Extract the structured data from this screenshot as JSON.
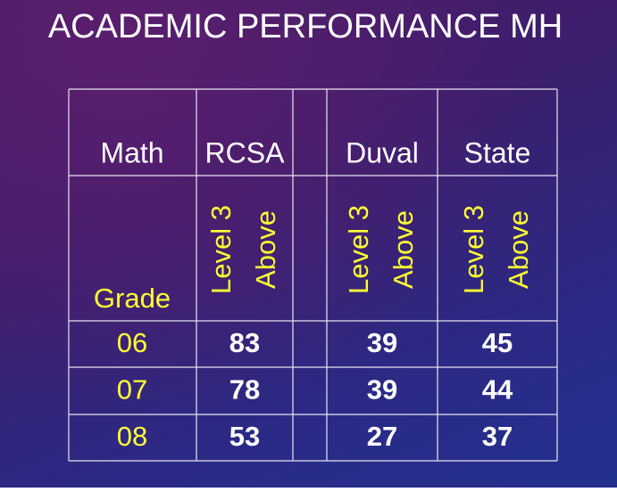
{
  "title": "ACADEMIC PERFORMANCE MH",
  "table": {
    "header": {
      "subject": "Math",
      "columns": [
        "RCSA",
        "Duval",
        "State"
      ]
    },
    "subheader": {
      "row_label": "Grade",
      "columns": [
        {
          "line1": "Level 3",
          "line2": "Above"
        },
        {
          "line1": "Level 3",
          "line2": "Above"
        },
        {
          "line1": "Level 3",
          "line2": "Above"
        }
      ]
    },
    "rows": [
      {
        "grade": "06",
        "values": [
          83,
          39,
          45
        ]
      },
      {
        "grade": "07",
        "values": [
          78,
          39,
          44
        ]
      },
      {
        "grade": "08",
        "values": [
          53,
          27,
          37
        ]
      }
    ]
  }
}
